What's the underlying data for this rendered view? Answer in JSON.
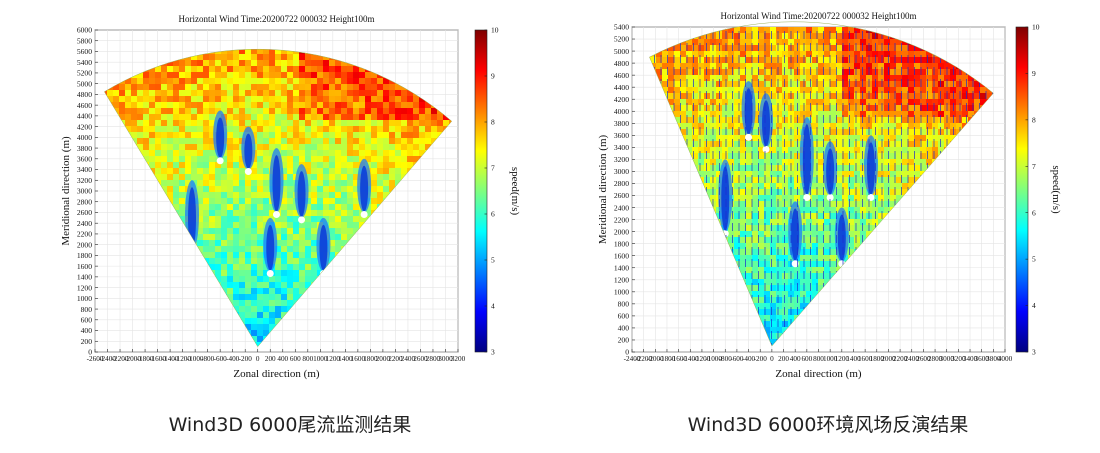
{
  "colors": {
    "colormap": [
      "#00007f",
      "#0000ff",
      "#007fff",
      "#00ffff",
      "#7fff7f",
      "#ffff00",
      "#ff7f00",
      "#ff0000",
      "#7f0000"
    ],
    "wake": "#0c3fd8",
    "arrow": "#1c2bd0",
    "background": "#ffffff"
  },
  "chart_data": [
    {
      "type": "heatmap",
      "title": "Horizontal Wind  Time:20200722 000032 Height100m",
      "xlabel": "Zonal direction (m)",
      "ylabel": "Meridional direction (m)",
      "xlim": [
        -2600,
        3200
      ],
      "ylim": [
        0,
        6000
      ],
      "x_ticks": [
        "-2600",
        "-2400",
        "-2200",
        "-2000",
        "-1800",
        "-1600",
        "-1400",
        "-1200",
        "-1000",
        "-800",
        "-600",
        "-400",
        "-200",
        "0",
        "200",
        "400",
        "600",
        "800",
        "1000",
        "1200",
        "1400",
        "1600",
        "1800",
        "2000",
        "2200",
        "2400",
        "2600",
        "2800",
        "3000",
        "3200"
      ],
      "y_ticks": [
        "0",
        "200",
        "400",
        "600",
        "800",
        "1000",
        "1200",
        "1400",
        "1600",
        "1800",
        "2000",
        "2200",
        "2400",
        "2600",
        "2800",
        "3000",
        "3200",
        "3400",
        "3600",
        "3800",
        "4000",
        "4200",
        "4400",
        "4600",
        "4800",
        "5000",
        "5200",
        "5400",
        "5600",
        "5800",
        "6000"
      ],
      "colorbar": {
        "label": "speed(m/s)",
        "min": 3,
        "max": 10,
        "ticks": [
          "3",
          "4",
          "5",
          "6",
          "7",
          "8",
          "9",
          "10"
        ]
      },
      "scan_sector": {
        "origin": [
          0,
          100
        ],
        "left_edge": [
          -2450,
          4850
        ],
        "right_edge": [
          3100,
          4300
        ],
        "outer_radius": 5100
      },
      "wakes": [
        {
          "x": -600,
          "y_top": 4500,
          "y_bottom": 3600
        },
        {
          "x": -150,
          "y_top": 4200,
          "y_bottom": 3400
        },
        {
          "x": 300,
          "y_top": 3800,
          "y_bottom": 2600
        },
        {
          "x": 700,
          "y_top": 3500,
          "y_bottom": 2500
        },
        {
          "x": 1700,
          "y_top": 3600,
          "y_bottom": 2600
        },
        {
          "x": -1050,
          "y_top": 3200,
          "y_bottom": 1900
        },
        {
          "x": 200,
          "y_top": 2500,
          "y_bottom": 1500
        },
        {
          "x": 1050,
          "y_top": 2500,
          "y_bottom": 1500
        }
      ]
    },
    {
      "type": "heatmap",
      "title": "Horizontal Wind  Time:20200722 000032 Height100m",
      "xlabel": "Zonal direction (m)",
      "ylabel": "Meridional direction (m)",
      "xlim": [
        -2400,
        4000
      ],
      "ylim": [
        0,
        5400
      ],
      "x_ticks": [
        "-2400",
        "-2200",
        "-2000",
        "-1800",
        "-1600",
        "-1400",
        "-1200",
        "-1000",
        "-800",
        "-600",
        "-400",
        "-200",
        "0",
        "200",
        "400",
        "600",
        "800",
        "1000",
        "1200",
        "1400",
        "1600",
        "1800",
        "2000",
        "2200",
        "2400",
        "2600",
        "2800",
        "3000",
        "3200",
        "3400",
        "3600",
        "3800",
        "4000"
      ],
      "y_ticks": [
        "0",
        "200",
        "400",
        "600",
        "800",
        "1000",
        "1200",
        "1400",
        "1600",
        "1800",
        "2000",
        "2200",
        "2400",
        "2600",
        "2800",
        "3000",
        "3200",
        "3400",
        "3600",
        "3800",
        "4000",
        "4200",
        "4400",
        "4600",
        "4800",
        "5000",
        "5200",
        "5400"
      ],
      "colorbar": {
        "label": "speed(m/s)",
        "min": 3,
        "max": 10,
        "ticks": [
          "3",
          "4",
          "5",
          "6",
          "7",
          "8",
          "9",
          "10"
        ]
      },
      "scan_sector": {
        "origin": [
          0,
          100
        ],
        "left_edge": [
          -2100,
          4900
        ],
        "right_edge": [
          3800,
          4300
        ],
        "outer_radius": 5350
      },
      "wind_vectors": {
        "direction": "from north",
        "spacing_m": 120
      },
      "wakes": [
        {
          "x": -400,
          "y_top": 4500,
          "y_bottom": 3600
        },
        {
          "x": -100,
          "y_top": 4300,
          "y_bottom": 3400
        },
        {
          "x": 600,
          "y_top": 3900,
          "y_bottom": 2600
        },
        {
          "x": 1000,
          "y_top": 3500,
          "y_bottom": 2600
        },
        {
          "x": 1700,
          "y_top": 3600,
          "y_bottom": 2600
        },
        {
          "x": -800,
          "y_top": 3200,
          "y_bottom": 2000
        },
        {
          "x": 400,
          "y_top": 2500,
          "y_bottom": 1500
        },
        {
          "x": 1200,
          "y_top": 2400,
          "y_bottom": 1500
        }
      ]
    }
  ],
  "captions": {
    "left": "Wind3D 6000尾流监测结果",
    "right": "Wind3D 6000环境风场反演结果"
  }
}
